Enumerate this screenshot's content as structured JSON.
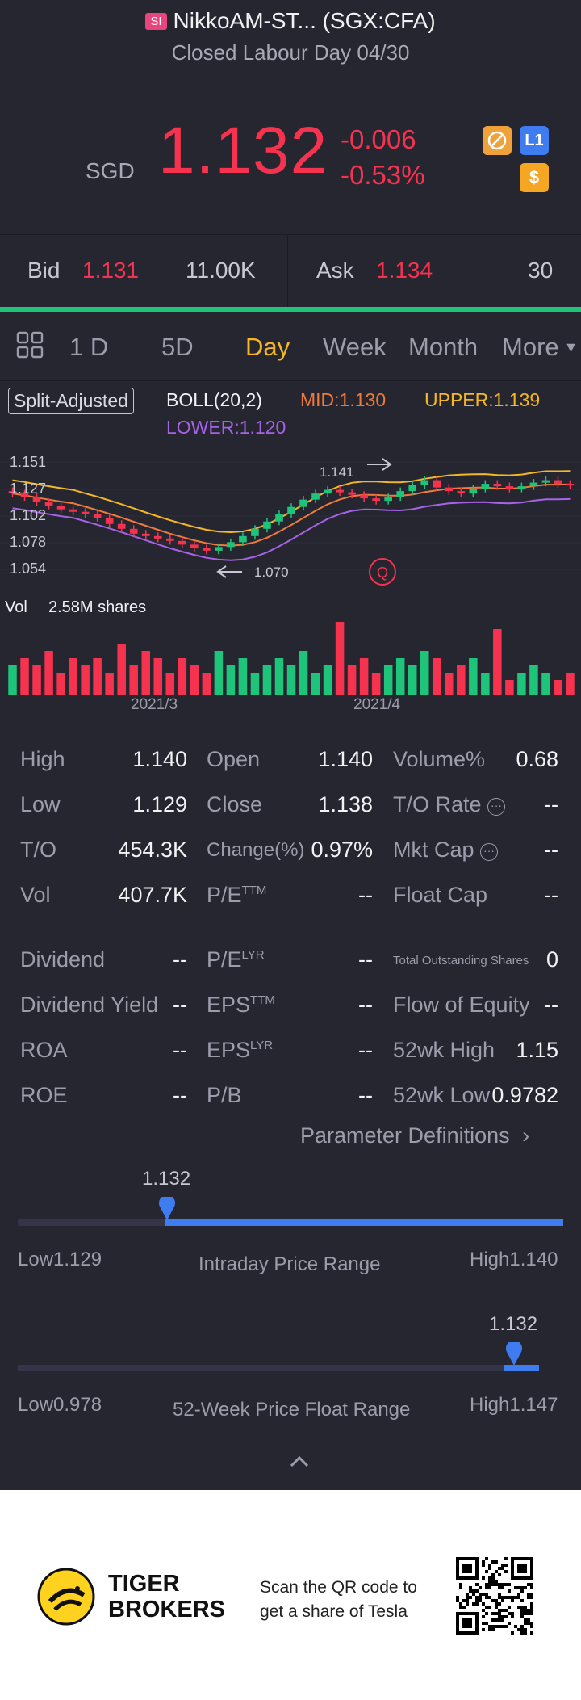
{
  "header": {
    "badge": "SI",
    "title": "NikkoAM-ST... (SGX:CFA)",
    "status": "Closed Labour Day 04/30",
    "currency": "SGD",
    "price": "1.132",
    "change": "-0.006",
    "change_pct": "-0.53%",
    "icon_l1": "L1",
    "icon_dollar": "$",
    "price_color": "#f5334f"
  },
  "bidask": {
    "bid_label": "Bid",
    "bid_price": "1.131",
    "bid_size": "11.00K",
    "ask_label": "Ask",
    "ask_price": "1.134",
    "ask_size": "30"
  },
  "tabs": [
    "1 D",
    "5D",
    "Day",
    "Week",
    "Month",
    "More"
  ],
  "active_tab": "Day",
  "indicators": {
    "split": "Split-Adjusted",
    "boll": "BOLL(20,2)",
    "mid": "MID:1.130",
    "upper": "UPPER:1.139",
    "lower": "LOWER:1.120"
  },
  "chart_data": {
    "type": "candlestick",
    "y_ticks": [
      "1.151",
      "1.127",
      "1.102",
      "1.078",
      "1.054"
    ],
    "x_ticks": [
      "2021/3",
      "2021/4"
    ],
    "annotations": {
      "high": "1.141",
      "low": "1.070",
      "marker": "Q"
    },
    "volume_label": "Vol",
    "volume_value": "2.58M shares",
    "closes": [
      1.125,
      1.122,
      1.118,
      1.115,
      1.112,
      1.11,
      1.108,
      1.105,
      1.1,
      1.096,
      1.092,
      1.09,
      1.088,
      1.086,
      1.083,
      1.08,
      1.078,
      1.081,
      1.085,
      1.09,
      1.096,
      1.102,
      1.108,
      1.114,
      1.12,
      1.125,
      1.128,
      1.126,
      1.124,
      1.121,
      1.119,
      1.122,
      1.127,
      1.132,
      1.136,
      1.13,
      1.127,
      1.125,
      1.129,
      1.133,
      1.131,
      1.129,
      1.131,
      1.134,
      1.136,
      1.133,
      1.132
    ],
    "volumes": [
      4,
      5,
      4,
      6,
      3,
      5,
      4,
      5,
      3,
      7,
      4,
      6,
      5,
      3,
      5,
      4,
      3,
      6,
      4,
      5,
      3,
      4,
      5,
      4,
      6,
      3,
      4,
      10,
      4,
      5,
      3,
      4,
      5,
      4,
      6,
      5,
      3,
      4,
      5,
      3,
      9,
      2,
      3,
      4,
      3,
      2,
      3
    ]
  },
  "colors": {
    "up": "#1dc47a",
    "down": "#f5334f",
    "mid": "#f07a3a",
    "upper": "#f5b722",
    "lower": "#a663e6",
    "accent": "#3e7cf0"
  },
  "stats": {
    "high_label": "High",
    "high": "1.140",
    "low_label": "Low",
    "low": "1.129",
    "to_label": "T/O",
    "to": "454.3K",
    "vol_label": "Vol",
    "vol": "407.7K",
    "open_label": "Open",
    "open": "1.140",
    "close_label": "Close",
    "close": "1.138",
    "change_label": "Change(%)",
    "change": "0.97%",
    "pe_ttm_label": "P/E",
    "pe_ttm_sup": "TTM",
    "pe_ttm": "--",
    "volpct_label": "Volume%",
    "volpct": "0.68",
    "torate_label": "T/O Rate",
    "torate": "--",
    "mktcap_label": "Mkt Cap",
    "mktcap": "--",
    "floatcap_label": "Float Cap",
    "floatcap": "--",
    "dividend_label": "Dividend",
    "dividend": "--",
    "divyield_label": "Dividend Yield",
    "divyield": "--",
    "roa_label": "ROA",
    "roa": "--",
    "roe_label": "ROE",
    "roe": "--",
    "pe_lyr_label": "P/E",
    "pe_lyr_sup": "LYR",
    "pe_lyr": "--",
    "eps_ttm_label": "EPS",
    "eps_ttm_sup": "TTM",
    "eps_ttm": "--",
    "eps_lyr_label": "EPS",
    "eps_lyr_sup": "LYR",
    "eps_lyr": "--",
    "pb_label": "P/B",
    "pb": "--",
    "tos_label": "Total Outstanding Shares",
    "tos": "0",
    "foe_label": "Flow of Equity",
    "foe": "--",
    "wk52h_label": "52wk High",
    "wk52h": "1.15",
    "wk52l_label": "52wk Low",
    "wk52l": "0.9782",
    "param_defs": "Parameter Definitions"
  },
  "intraday": {
    "current": "1.132",
    "low": "Low1.129",
    "title": "Intraday Price Range",
    "high": "High1.140",
    "position": 0.27
  },
  "week52": {
    "current": "1.132",
    "low": "Low0.978",
    "title": "52-Week Price Float Range",
    "high": "High1.147",
    "position": 0.915
  },
  "footer": {
    "brand_line1": "TIGER",
    "brand_line2": "BROKERS",
    "promo_line1": "Scan the QR code to",
    "promo_line2": "get a share of Tesla"
  }
}
